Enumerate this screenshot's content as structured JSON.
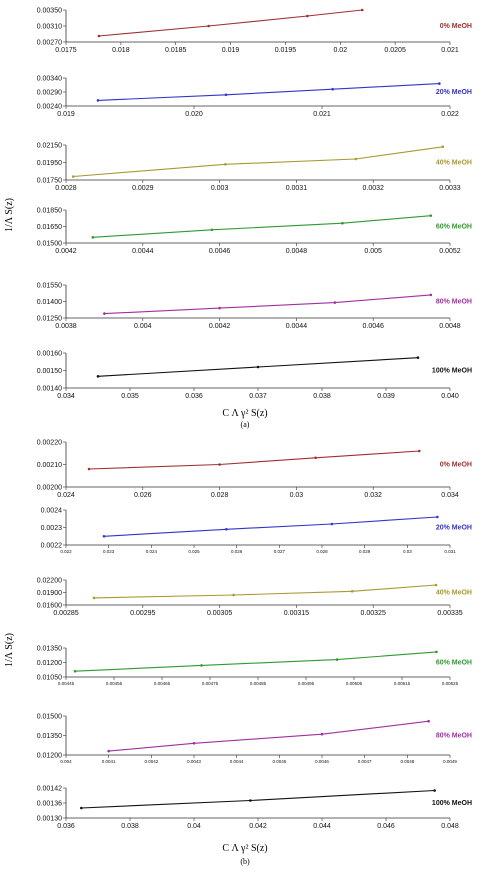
{
  "figure": {
    "ylabel": "1/Λ S(z)",
    "xlabel": "C Λ γ² S(z)",
    "panel_a_tag": "(a)",
    "panel_b_tag": "(b)"
  },
  "chart_data": [
    {
      "type": "line",
      "group": "a",
      "series_name": "0% MeOH",
      "color": "#a03030",
      "xlim": [
        0.0175,
        0.021
      ],
      "ylim": [
        0.0027,
        0.0035
      ],
      "xticks": [
        "0.0175",
        "0.018",
        "0.0185",
        "0.019",
        "0.0195",
        "0.02",
        "0.0205",
        "0.021"
      ],
      "yticks": [
        "0.00270",
        "0.00310",
        "0.00350"
      ],
      "x": [
        0.0178,
        0.0188,
        0.0197,
        0.0202
      ],
      "y": [
        0.00285,
        0.0031,
        0.00335,
        0.0035
      ]
    },
    {
      "type": "line",
      "group": "a",
      "series_name": "20% MeOH",
      "color": "#3333cc",
      "xlim": [
        0.019,
        0.0226
      ],
      "ylim": [
        0.0024,
        0.0034
      ],
      "xticks": [
        "0.019",
        "0.020",
        "0.021",
        "0.022"
      ],
      "yticks": [
        "0.00240",
        "0.00290",
        "0.00340"
      ],
      "x": [
        0.0193,
        0.0205,
        0.0215,
        0.0225
      ],
      "y": [
        0.0026,
        0.0028,
        0.003,
        0.0032
      ]
    },
    {
      "type": "line",
      "group": "a",
      "series_name": "40% MeOH",
      "color": "#a89a30",
      "xlim": [
        0.0028,
        0.00333
      ],
      "ylim": [
        0.0175,
        0.0215
      ],
      "xticks": [
        "0.0028",
        "0.0029",
        "0.003",
        "0.0031",
        "0.0032",
        "0.0033"
      ],
      "yticks": [
        "0.01750",
        "0.01950",
        "0.02150"
      ],
      "x": [
        0.00281,
        0.00302,
        0.0032,
        0.00332
      ],
      "y": [
        0.0179,
        0.0193,
        0.0199,
        0.0213
      ]
    },
    {
      "type": "line",
      "group": "a",
      "series_name": "60% MeOH",
      "color": "#2f9a2f",
      "xlim": [
        0.0042,
        0.0052
      ],
      "ylim": [
        0.015,
        0.0185
      ],
      "xticks": [
        "0.0042",
        "0.0044",
        "0.0046",
        "0.0048",
        "0.005",
        "0.0052"
      ],
      "yticks": [
        "0.01500",
        "0.01650",
        "0.01850"
      ],
      "x": [
        0.00427,
        0.00458,
        0.00492,
        0.00515
      ],
      "y": [
        0.0156,
        0.0164,
        0.0171,
        0.0179
      ]
    },
    {
      "type": "line",
      "group": "a",
      "series_name": "80% MeOH",
      "color": "#a030a0",
      "xlim": [
        0.0038,
        0.0048
      ],
      "ylim": [
        0.0125,
        0.0155
      ],
      "xticks": [
        "0.0038",
        "0.004",
        "0.0042",
        "0.0044",
        "0.0046",
        "0.0048"
      ],
      "yticks": [
        "0.01250",
        "0.01400",
        "0.01550"
      ],
      "x": [
        0.0039,
        0.0042,
        0.0045,
        0.00475
      ],
      "y": [
        0.0129,
        0.0134,
        0.0139,
        0.0146
      ]
    },
    {
      "type": "line",
      "group": "a",
      "series_name": "100% MeOH",
      "color": "#111111",
      "xlim": [
        0.034,
        0.04
      ],
      "ylim": [
        0.0014,
        0.0017
      ],
      "xticks": [
        "0.034",
        "0.035",
        "0.036",
        "0.037",
        "0.038",
        "0.039",
        "0.040"
      ],
      "yticks": [
        "0.00140",
        "0.00150",
        "0.00160"
      ],
      "x": [
        0.0345,
        0.037,
        0.0395
      ],
      "y": [
        0.0015,
        0.00158,
        0.00166
      ]
    },
    {
      "type": "line",
      "group": "b",
      "series_name": "0% MeOH",
      "color": "#a03030",
      "xlim": [
        0.024,
        0.034
      ],
      "ylim": [
        0.002,
        0.0022
      ],
      "xticks": [
        "0.024",
        "0.026",
        "0.028",
        "0.03",
        "0.032",
        "0.034"
      ],
      "yticks": [
        "0.00200",
        "0.00210",
        "0.00220"
      ],
      "x": [
        0.0246,
        0.028,
        0.0305,
        0.0332
      ],
      "y": [
        0.00208,
        0.0021,
        0.00213,
        0.00216
      ]
    },
    {
      "type": "line",
      "group": "b",
      "series_name": "20% MeOH",
      "color": "#3333cc",
      "xlim": [
        0.022,
        0.0311
      ],
      "ylim": [
        0.0022,
        0.0024
      ],
      "xticks": [
        "0.022",
        "0.023",
        "0.024",
        "0.025",
        "0.026",
        "0.027",
        "0.028",
        "0.029",
        "0.03",
        "0.031"
      ],
      "yticks": [
        "0.0022",
        "0.0023",
        "0.0024"
      ],
      "x": [
        0.0229,
        0.0258,
        0.0283,
        0.0308
      ],
      "y": [
        0.00225,
        0.00229,
        0.00232,
        0.00236
      ]
    },
    {
      "type": "line",
      "group": "b",
      "series_name": "40% MeOH",
      "color": "#a89a30",
      "xlim": [
        0.00285,
        0.0034
      ],
      "ylim": [
        0.016,
        0.022
      ],
      "xticks": [
        "0.00285",
        "0.00295",
        "0.00305",
        "0.00315",
        "0.00325",
        "0.00335"
      ],
      "yticks": [
        "0.01600",
        "0.01900",
        "0.02200"
      ],
      "x": [
        0.00289,
        0.00309,
        0.00326,
        0.00338
      ],
      "y": [
        0.0177,
        0.0184,
        0.0193,
        0.0208
      ]
    },
    {
      "type": "line",
      "group": "b",
      "series_name": "60% MeOH",
      "color": "#2f9a2f",
      "xlim": [
        0.00445,
        0.0053
      ],
      "ylim": [
        0.0105,
        0.0135
      ],
      "xticks": [
        "0.00445",
        "0.00455",
        "0.00465",
        "0.00475",
        "0.00485",
        "0.00495",
        "0.00505",
        "0.00515",
        "0.00525"
      ],
      "yticks": [
        "0.01050",
        "0.01200",
        "0.01350"
      ],
      "x": [
        0.00447,
        0.00475,
        0.00505,
        0.00527
      ],
      "y": [
        0.0111,
        0.0117,
        0.0123,
        0.0131
      ]
    },
    {
      "type": "line",
      "group": "b",
      "series_name": "80% MeOH",
      "color": "#a030a0",
      "xlim": [
        0.004,
        0.0049
      ],
      "ylim": [
        0.012,
        0.015
      ],
      "xticks": [
        "0.004",
        "0.0041",
        "0.0042",
        "0.0043",
        "0.0044",
        "0.0045",
        "0.0046",
        "0.0047",
        "0.0048",
        "0.0049"
      ],
      "yticks": [
        "0.01200",
        "0.01350",
        "0.01500"
      ],
      "x": [
        0.0041,
        0.0043,
        0.0046,
        0.00485
      ],
      "y": [
        0.0123,
        0.0129,
        0.0136,
        0.0146
      ]
    },
    {
      "type": "line",
      "group": "b",
      "series_name": "100% MeOH",
      "color": "#111111",
      "xlim": [
        0.036,
        0.0485
      ],
      "ylim": [
        0.0013,
        0.00142
      ],
      "xticks": [
        "0.036",
        "0.038",
        "0.04",
        "0.042",
        "0.044",
        "0.046",
        "0.048"
      ],
      "yticks": [
        "0.00130",
        "0.00136",
        "0.00142"
      ],
      "x": [
        0.0365,
        0.042,
        0.048
      ],
      "y": [
        0.00134,
        0.00137,
        0.00141
      ]
    }
  ]
}
